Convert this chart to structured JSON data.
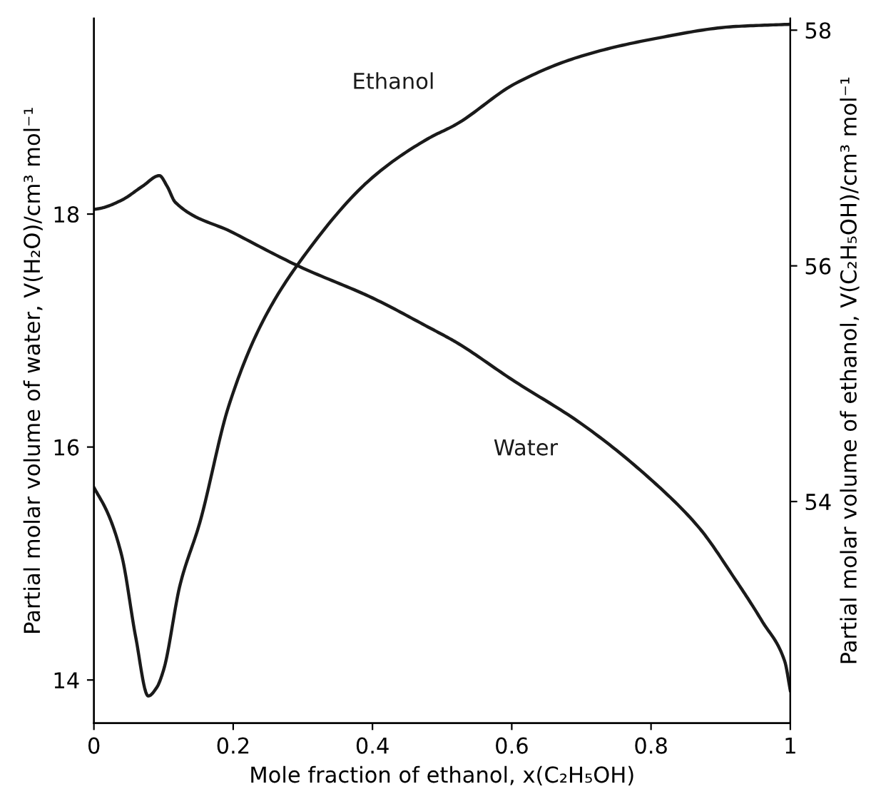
{
  "chart_data": {
    "type": "line",
    "xlabel": "Mole fraction of ethanol, x(C₂H₅OH)",
    "ylabel": "Partial molar volume of water, V(H₂O)/cm³ mol⁻¹",
    "y2label": "Partial molar volume of ethanol, V(C₂H₅OH)/cm³ mol⁻¹",
    "xlim": [
      0,
      1
    ],
    "xticks": [
      0,
      0.2,
      0.4,
      0.6,
      0.8,
      1
    ],
    "ylim": [
      13.63,
      19.68
    ],
    "yticks": [
      14,
      16,
      18
    ],
    "y2lim": [
      52.12,
      58.1
    ],
    "y2ticks": [
      54,
      56,
      58
    ],
    "grid": false,
    "legend": false,
    "marker": "none",
    "line_style": "solid",
    "series": [
      {
        "name": "Water",
        "color": "#1a1a1a",
        "x": [
          0,
          0.01,
          0.04,
          0.07,
          0.094,
          0.105,
          0.117,
          0.2,
          0.295,
          0.4,
          0.48,
          0.52,
          0.6,
          0.7,
          0.8,
          0.87,
          0.918,
          0.96,
          0.992,
          1
        ],
        "values": [
          18.04,
          18.05,
          18.12,
          18.24,
          18.33,
          18.24,
          18.1,
          17.84,
          17.55,
          17.28,
          17.03,
          16.9,
          16.58,
          16.2,
          15.72,
          15.3,
          14.89,
          14.5,
          14.16,
          13.91
        ]
      },
      {
        "name": "Ethanol",
        "color": "#1a1a1a",
        "axis": "y2",
        "x": [
          0,
          0.02,
          0.04,
          0.06,
          0.078,
          0.09,
          0.1,
          0.124,
          0.152,
          0.193,
          0.24,
          0.295,
          0.4,
          0.48,
          0.52,
          0.606,
          0.7,
          0.807,
          0.918,
          1
        ],
        "values": [
          54.12,
          53.9,
          53.54,
          52.85,
          52.35,
          52.42,
          52.57,
          53.3,
          53.82,
          54.8,
          55.5,
          56.03,
          56.75,
          57.08,
          57.2,
          57.55,
          57.78,
          57.93,
          58.03,
          58.05
        ]
      }
    ]
  }
}
